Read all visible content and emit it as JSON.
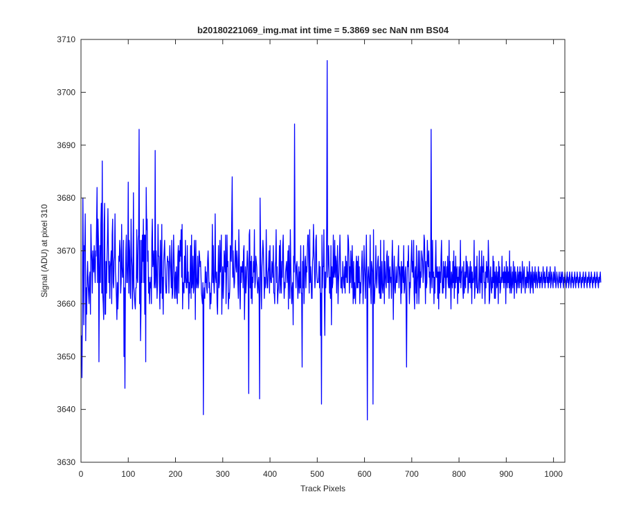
{
  "chart_data": {
    "type": "line",
    "title": "b20180221069_img.mat int time = 5.3869 sec  NaN nm BS04",
    "xlabel": "Track Pixels",
    "ylabel": "Signal (ADU) at pixel 310",
    "xlim": [
      0,
      1024
    ],
    "ylim": [
      3630,
      3710
    ],
    "xticks": [
      0,
      100,
      200,
      300,
      400,
      500,
      600,
      700,
      800,
      900,
      1000
    ],
    "yticks": [
      3630,
      3640,
      3650,
      3660,
      3670,
      3680,
      3690,
      3700,
      3710
    ],
    "grid": false,
    "legend": "none",
    "series": [
      {
        "color": "#0000ff",
        "x_start": 1,
        "x_step": 1,
        "values": [
          3654,
          3646,
          3659,
          3680,
          3668,
          3656,
          3671,
          3670,
          3677,
          3653,
          3663,
          3658,
          3665,
          3668,
          3664,
          3662,
          3660,
          3665,
          3666,
          3658,
          3675,
          3670,
          3668,
          3662,
          3670,
          3667,
          3666,
          3671,
          3667,
          3664,
          3670,
          3669,
          3675,
          3682,
          3664,
          3676,
          3672,
          3649,
          3666,
          3671,
          3664,
          3675,
          3679,
          3662,
          3687,
          3662,
          3660,
          3657,
          3675,
          3679,
          3658,
          3658,
          3668,
          3662,
          3668,
          3672,
          3678,
          3670,
          3664,
          3668,
          3661,
          3667,
          3668,
          3670,
          3660,
          3673,
          3676,
          3664,
          3663,
          3668,
          3669,
          3677,
          3666,
          3664,
          3661,
          3657,
          3664,
          3659,
          3662,
          3669,
          3668,
          3672,
          3670,
          3662,
          3664,
          3675,
          3667,
          3665,
          3665,
          3672,
          3650,
          3663,
          3644,
          3662,
          3670,
          3673,
          3664,
          3664,
          3668,
          3683,
          3662,
          3672,
          3670,
          3662,
          3661,
          3676,
          3669,
          3667,
          3659,
          3665,
          3681,
          3663,
          3662,
          3660,
          3659,
          3663,
          3663,
          3674,
          3665,
          3664,
          3672,
          3673,
          3693,
          3660,
          3672,
          3653,
          3659,
          3672,
          3664,
          3673,
          3668,
          3676,
          3664,
          3673,
          3658,
          3673,
          3649,
          3682,
          3674,
          3676,
          3668,
          3670,
          3662,
          3665,
          3660,
          3664,
          3663,
          3665,
          3660,
          3672,
          3676,
          3667,
          3668,
          3670,
          3663,
          3664,
          3689,
          3663,
          3670,
          3667,
          3661,
          3664,
          3675,
          3669,
          3669,
          3663,
          3659,
          3672,
          3662,
          3667,
          3675,
          3661,
          3665,
          3658,
          3668,
          3670,
          3672,
          3667,
          3664,
          3662,
          3662,
          3667,
          3669,
          3668,
          3668,
          3662,
          3667,
          3671,
          3668,
          3666,
          3663,
          3672,
          3661,
          3662,
          3667,
          3673,
          3668,
          3661,
          3664,
          3666,
          3661,
          3667,
          3664,
          3660,
          3669,
          3671,
          3662,
          3670,
          3668,
          3672,
          3669,
          3674,
          3665,
          3675,
          3659,
          3664,
          3663,
          3662,
          3669,
          3664,
          3672,
          3665,
          3663,
          3663,
          3671,
          3664,
          3666,
          3659,
          3664,
          3662,
          3666,
          3671,
          3661,
          3673,
          3663,
          3664,
          3669,
          3662,
          3663,
          3672,
          3669,
          3657,
          3672,
          3665,
          3663,
          3664,
          3669,
          3663,
          3664,
          3670,
          3669,
          3667,
          3668,
          3665,
          3662,
          3661,
          3660,
          3664,
          3639,
          3661,
          3663,
          3661,
          3667,
          3664,
          3666,
          3663,
          3662,
          3668,
          3670,
          3667,
          3663,
          3664,
          3659,
          3662,
          3660,
          3663,
          3666,
          3675,
          3664,
          3671,
          3664,
          3662,
          3666,
          3677,
          3665,
          3664,
          3666,
          3660,
          3658,
          3665,
          3671,
          3663,
          3664,
          3672,
          3666,
          3667,
          3673,
          3658,
          3664,
          3667,
          3661,
          3664,
          3670,
          3668,
          3666,
          3673,
          3660,
          3665,
          3673,
          3667,
          3668,
          3659,
          3662,
          3661,
          3663,
          3671,
          3670,
          3668,
          3676,
          3684,
          3665,
          3670,
          3666,
          3663,
          3664,
          3669,
          3672,
          3667,
          3666,
          3670,
          3668,
          3664,
          3661,
          3674,
          3669,
          3662,
          3659,
          3667,
          3664,
          3667,
          3666,
          3668,
          3663,
          3670,
          3671,
          3657,
          3663,
          3667,
          3662,
          3664,
          3667,
          3670,
          3668,
          3663,
          3643,
          3673,
          3674,
          3663,
          3668,
          3661,
          3669,
          3660,
          3665,
          3664,
          3668,
          3666,
          3674,
          3663,
          3664,
          3669,
          3668,
          3667,
          3664,
          3662,
          3664,
          3665,
          3661,
          3642,
          3680,
          3671,
          3663,
          3659,
          3667,
          3669,
          3672,
          3670,
          3666,
          3661,
          3665,
          3663,
          3664,
          3674,
          3667,
          3663,
          3663,
          3666,
          3667,
          3670,
          3662,
          3671,
          3665,
          3664,
          3664,
          3668,
          3667,
          3665,
          3671,
          3662,
          3662,
          3660,
          3667,
          3668,
          3674,
          3664,
          3667,
          3660,
          3662,
          3663,
          3666,
          3671,
          3662,
          3672,
          3664,
          3662,
          3668,
          3665,
          3671,
          3673,
          3665,
          3661,
          3664,
          3663,
          3666,
          3667,
          3668,
          3664,
          3666,
          3670,
          3659,
          3671,
          3665,
          3661,
          3674,
          3668,
          3663,
          3660,
          3663,
          3664,
          3656,
          3669,
          3666,
          3694,
          3668,
          3667,
          3663,
          3667,
          3668,
          3665,
          3661,
          3664,
          3667,
          3662,
          3666,
          3663,
          3671,
          3662,
          3662,
          3648,
          3668,
          3663,
          3671,
          3660,
          3664,
          3668,
          3669,
          3663,
          3667,
          3666,
          3670,
          3673,
          3673,
          3667,
          3662,
          3674,
          3664,
          3667,
          3665,
          3661,
          3661,
          3668,
          3669,
          3675,
          3670,
          3667,
          3663,
          3665,
          3672,
          3673,
          3666,
          3664,
          3664,
          3664,
          3665,
          3668,
          3663,
          3667,
          3654,
          3662,
          3641,
          3673,
          3663,
          3667,
          3667,
          3674,
          3662,
          3654,
          3666,
          3663,
          3666,
          3675,
          3706,
          3665,
          3668,
          3671,
          3667,
          3662,
          3665,
          3661,
          3671,
          3656,
          3667,
          3663,
          3664,
          3673,
          3665,
          3666,
          3672,
          3665,
          3669,
          3668,
          3662,
          3667,
          3671,
          3660,
          3664,
          3666,
          3669,
          3673,
          3668,
          3663,
          3663,
          3665,
          3662,
          3668,
          3666,
          3664,
          3663,
          3667,
          3662,
          3669,
          3665,
          3668,
          3664,
          3664,
          3673,
          3672,
          3669,
          3662,
          3667,
          3664,
          3670,
          3667,
          3663,
          3671,
          3666,
          3660,
          3668,
          3661,
          3664,
          3662,
          3660,
          3667,
          3669,
          3663,
          3668,
          3663,
          3669,
          3664,
          3667,
          3660,
          3664,
          3662,
          3665,
          3667,
          3670,
          3666,
          3660,
          3664,
          3671,
          3667,
          3665,
          3661,
          3668,
          3673,
          3663,
          3638,
          3665,
          3667,
          3665,
          3663,
          3664,
          3673,
          3663,
          3660,
          3668,
          3667,
          3666,
          3641,
          3674,
          3661,
          3660,
          3663,
          3664,
          3671,
          3665,
          3663,
          3666,
          3668,
          3669,
          3664,
          3662,
          3667,
          3661,
          3672,
          3661,
          3664,
          3668,
          3663,
          3662,
          3664,
          3672,
          3660,
          3668,
          3666,
          3664,
          3663,
          3669,
          3670,
          3664,
          3664,
          3669,
          3661,
          3666,
          3667,
          3664,
          3665,
          3661,
          3668,
          3672,
          3665,
          3657,
          3666,
          3669,
          3663,
          3662,
          3664,
          3667,
          3664,
          3664,
          3666,
          3668,
          3671,
          3663,
          3667,
          3667,
          3665,
          3660,
          3668,
          3662,
          3667,
          3667,
          3664,
          3671,
          3662,
          3663,
          3666,
          3667,
          3660,
          3648,
          3664,
          3668,
          3667,
          3671,
          3665,
          3660,
          3664,
          3663,
          3666,
          3669,
          3672,
          3666,
          3668,
          3665,
          3672,
          3662,
          3659,
          3666,
          3667,
          3662,
          3671,
          3660,
          3664,
          3666,
          3670,
          3660,
          3664,
          3670,
          3663,
          3666,
          3665,
          3670,
          3669,
          3668,
          3664,
          3666,
          3673,
          3672,
          3667,
          3660,
          3668,
          3663,
          3664,
          3672,
          3668,
          3667,
          3670,
          3665,
          3666,
          3662,
          3664,
          3693,
          3666,
          3663,
          3672,
          3665,
          3666,
          3660,
          3665,
          3662,
          3667,
          3672,
          3665,
          3665,
          3667,
          3661,
          3666,
          3659,
          3667,
          3662,
          3666,
          3664,
          3669,
          3672,
          3665,
          3662,
          3662,
          3668,
          3663,
          3667,
          3665,
          3668,
          3661,
          3664,
          3667,
          3665,
          3669,
          3664,
          3663,
          3672,
          3663,
          3668,
          3664,
          3659,
          3666,
          3665,
          3663,
          3668,
          3664,
          3670,
          3661,
          3667,
          3663,
          3669,
          3664,
          3666,
          3667,
          3660,
          3665,
          3662,
          3667,
          3665,
          3664,
          3672,
          3663,
          3666,
          3666,
          3667,
          3663,
          3661,
          3668,
          3662,
          3664,
          3666,
          3663,
          3669,
          3665,
          3668,
          3667,
          3662,
          3663,
          3667,
          3664,
          3664,
          3668,
          3663,
          3667,
          3660,
          3666,
          3664,
          3664,
          3665,
          3672,
          3661,
          3663,
          3667,
          3667,
          3663,
          3669,
          3662,
          3662,
          3663,
          3665,
          3670,
          3662,
          3664,
          3667,
          3664,
          3670,
          3661,
          3667,
          3666,
          3669,
          3664,
          3664,
          3660,
          3666,
          3663,
          3668,
          3665,
          3667,
          3664,
          3672,
          3668,
          3660,
          3661,
          3666,
          3667,
          3663,
          3662,
          3665,
          3663,
          3669,
          3664,
          3668,
          3661,
          3666,
          3661,
          3665,
          3667,
          3663,
          3664,
          3666,
          3660,
          3668,
          3664,
          3667,
          3662,
          3663,
          3665,
          3664,
          3669,
          3665,
          3664,
          3666,
          3663,
          3667,
          3664,
          3666,
          3660,
          3668,
          3665,
          3663,
          3667,
          3664,
          3666,
          3663,
          3670,
          3662,
          3664,
          3667,
          3662,
          3664,
          3666,
          3663,
          3668,
          3665,
          3661,
          3667,
          3664,
          3666,
          3664,
          3662,
          3665,
          3667,
          3663,
          3665,
          3666,
          3663,
          3667,
          3664,
          3666,
          3662,
          3664,
          3668,
          3665,
          3663,
          3666,
          3667,
          3664,
          3662,
          3665,
          3665,
          3663,
          3667,
          3664,
          3666,
          3663,
          3665,
          3668,
          3664,
          3662,
          3666,
          3665,
          3663,
          3667,
          3664,
          3662,
          3666,
          3665,
          3664,
          3667,
          3663,
          3665,
          3666,
          3664,
          3663,
          3665,
          3667,
          3664,
          3666,
          3663,
          3665,
          3664,
          3666,
          3665,
          3663,
          3664,
          3667,
          3665,
          3664,
          3666,
          3663,
          3665,
          3664,
          3666,
          3667,
          3664,
          3665,
          3663,
          3666,
          3664,
          3665,
          3667,
          3663,
          3664,
          3666,
          3665,
          3664,
          3663,
          3666,
          3665,
          3664,
          3667,
          3665,
          3663,
          3664,
          3666,
          3665,
          3664,
          3663,
          3665,
          3666,
          3664,
          3665,
          3663,
          3666,
          3664,
          3665,
          3666,
          3664,
          3663,
          3665,
          3664,
          3666,
          3665,
          3664,
          3663,
          3665,
          3666,
          3664,
          3665,
          3663,
          3664,
          3666,
          3665,
          3664,
          3663,
          3665,
          3666,
          3664,
          3665,
          3663,
          3664,
          3665,
          3666,
          3664,
          3663,
          3665,
          3664,
          3666,
          3665,
          3664,
          3663,
          3665,
          3664,
          3666,
          3665,
          3664,
          3663,
          3665,
          3664,
          3665,
          3666,
          3664,
          3663,
          3665,
          3664,
          3666,
          3665,
          3664,
          3663,
          3665,
          3664,
          3665,
          3666,
          3664,
          3663,
          3665,
          3664,
          3666,
          3665,
          3664,
          3663,
          3665,
          3664,
          3665,
          3666,
          3664,
          3663,
          3665,
          3664,
          3666,
          3665,
          3664,
          3663,
          3665,
          3664,
          3665,
          3666,
          3664
        ]
      }
    ]
  }
}
